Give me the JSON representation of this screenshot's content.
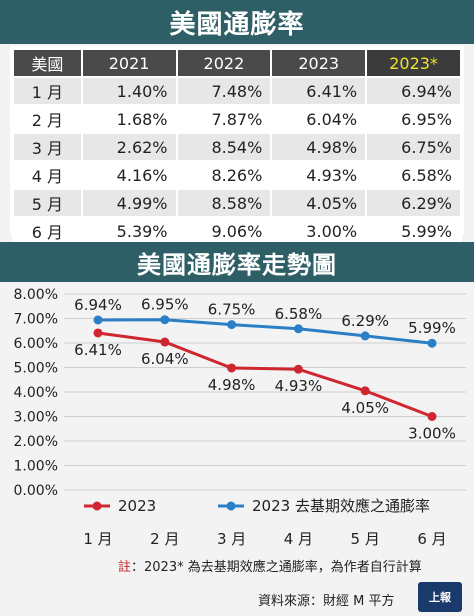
{
  "title": "美國通膨率",
  "table": {
    "headers": [
      "美國",
      "2021",
      "2022",
      "2023",
      "2023*"
    ],
    "rows": [
      [
        "1 月",
        "1.40%",
        "7.48%",
        "6.41%",
        "6.94%"
      ],
      [
        "2 月",
        "1.68%",
        "7.87%",
        "6.04%",
        "6.95%"
      ],
      [
        "3 月",
        "2.62%",
        "8.54%",
        "4.98%",
        "6.75%"
      ],
      [
        "4 月",
        "4.16%",
        "8.26%",
        "4.93%",
        "6.58%"
      ],
      [
        "5 月",
        "4.99%",
        "8.58%",
        "4.05%",
        "6.29%"
      ],
      [
        "6 月",
        "5.39%",
        "9.06%",
        "3.00%",
        "5.99%"
      ]
    ]
  },
  "chart_data": {
    "type": "line",
    "title": "美國通膨率走勢圖",
    "categories": [
      "1 月",
      "2 月",
      "3 月",
      "4 月",
      "5 月",
      "6 月"
    ],
    "ylim": [
      0,
      8
    ],
    "yticks": [
      "0.00%",
      "1.00%",
      "2.00%",
      "3.00%",
      "4.00%",
      "5.00%",
      "6.00%",
      "7.00%",
      "8.00%"
    ],
    "grid": true,
    "legend_position": "bottom",
    "series": [
      {
        "name": "2023",
        "color": "#d0262f",
        "values": [
          6.41,
          6.04,
          4.98,
          4.93,
          4.05,
          3.0
        ],
        "labels": [
          "6.41%",
          "6.04%",
          "4.98%",
          "4.93%",
          "4.05%",
          "3.00%"
        ]
      },
      {
        "name": "2023 去基期效應之通膨率",
        "color": "#2a7fc6",
        "values": [
          6.94,
          6.95,
          6.75,
          6.58,
          6.29,
          5.99
        ],
        "labels": [
          "6.94%",
          "6.95%",
          "6.75%",
          "6.58%",
          "6.29%",
          "5.99%"
        ]
      }
    ]
  },
  "note": {
    "prefix": "註",
    "text": "：2023* 為去基期效應之通膨率，為作者自行計算"
  },
  "source": "資料來源：財經 M 平方",
  "logo": "上報",
  "colors": {
    "banner": "#2f5f66",
    "header_highlight": "#f1e32a"
  }
}
